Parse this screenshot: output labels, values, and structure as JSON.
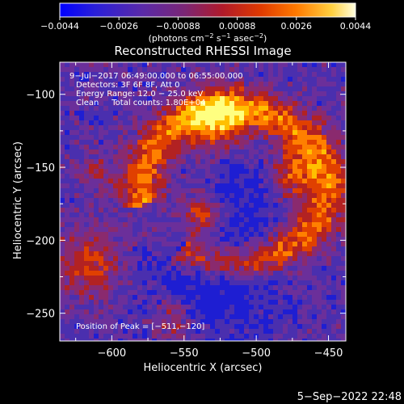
{
  "colorbar": {
    "ticks": [
      "−0.0044",
      "−0.0026",
      "−0.00088",
      "0.00088",
      "0.0026",
      "0.0044"
    ],
    "range": [
      -0.0044,
      0.0044
    ],
    "units_prefix": "(photons cm",
    "units_sup1": "−2",
    "units_mid1": " s",
    "units_sup2": "−1",
    "units_mid2": " asec",
    "units_sup3": "−2",
    "units_suffix": ")"
  },
  "chart_data": {
    "type": "heatmap",
    "title": "Reconstructed RHESSI Image",
    "xlabel": "Heliocentric X (arcsec)",
    "ylabel": "Heliocentric Y (arcsec)",
    "xlim": [
      -636,
      -438
    ],
    "ylim": [
      -269,
      -78
    ],
    "xticks": [
      -600,
      -550,
      -500,
      -450
    ],
    "yticks": [
      -100,
      -150,
      -200,
      -250
    ],
    "xtick_labels": [
      "−600",
      "−550",
      "−500",
      "−450"
    ],
    "ytick_labels": [
      "−100",
      "−150",
      "−200",
      "−250"
    ],
    "annotations": [
      "9−Jul−2017 06:49:00.000 to 06:55:00.000",
      "Detectors: 3F 6F 8F, Att 0",
      "Energy Range: 12.0 − 25.0 keV",
      "Clean     Total counts: 1.80E+04"
    ],
    "peak_label": "Position of Peak = [−511,−120]",
    "peak_position": [
      -511,
      -120
    ],
    "colormap": [
      "#1e1ed2",
      "#4a2fae",
      "#6b2f9a",
      "#8a2a6e",
      "#b22222",
      "#e04000",
      "#ff8000",
      "#ffc000",
      "#ffff80"
    ]
  },
  "footer": {
    "timestamp": "5−Sep−2022 22:48"
  }
}
